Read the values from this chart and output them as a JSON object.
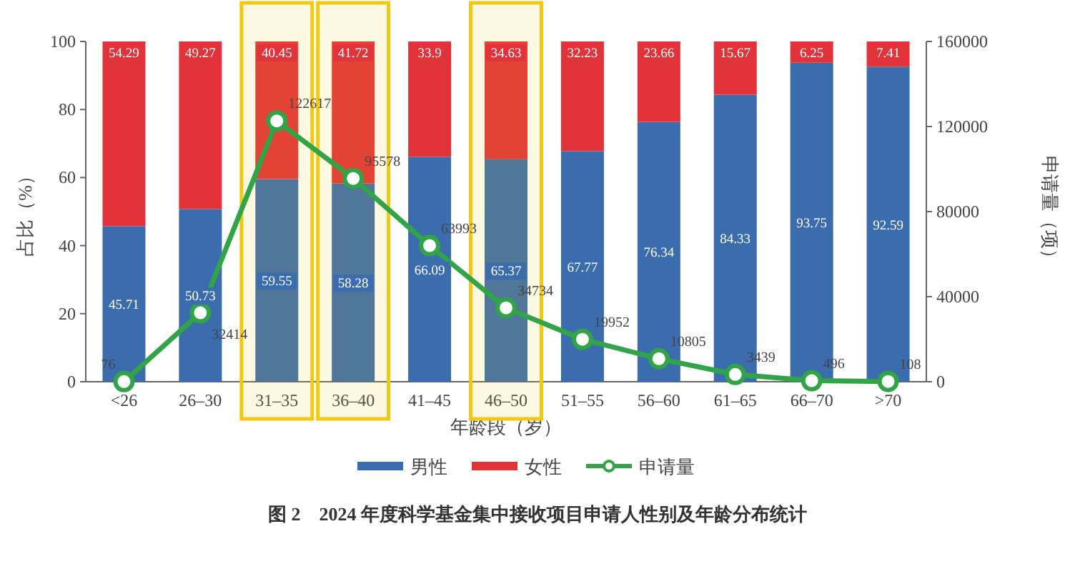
{
  "chart_data": {
    "type": "bar",
    "stacked": true,
    "xlabel": "年龄段（岁）",
    "ylabel": "占比（%）",
    "y2label": "申请量（项）",
    "categories": [
      "<26",
      "26–30",
      "31–35",
      "36–40",
      "41–45",
      "46–50",
      "51–55",
      "56–60",
      "61–65",
      "66–70",
      ">70"
    ],
    "series": [
      {
        "name": "男性",
        "color": "#3b6cae",
        "values": [
          45.71,
          50.73,
          59.55,
          58.28,
          66.09,
          65.37,
          67.77,
          76.34,
          84.33,
          93.75,
          92.59
        ]
      },
      {
        "name": "女性",
        "color": "#e2323a",
        "values": [
          54.29,
          49.27,
          40.45,
          41.72,
          33.9,
          34.63,
          32.23,
          23.66,
          15.67,
          6.25,
          7.41
        ]
      },
      {
        "name": "申请量",
        "type": "line",
        "axis": "y2",
        "color": "#31a447",
        "marker": "circle",
        "values": [
          76,
          32414,
          122617,
          95578,
          63993,
          34734,
          19952,
          10805,
          3439,
          496,
          108
        ]
      }
    ],
    "data_labels": true,
    "ylim": [
      0,
      100
    ],
    "yticks": [
      0,
      20,
      40,
      60,
      80,
      100
    ],
    "y2lim": [
      0,
      160000
    ],
    "y2ticks": [
      0,
      40000,
      80000,
      120000,
      160000
    ],
    "bands": [
      {
        "axis": "x",
        "from": "31–35",
        "to": "31–35",
        "color": "#f2c811"
      },
      {
        "axis": "x",
        "from": "36–40",
        "to": "36–40",
        "color": "#f2c811"
      },
      {
        "axis": "x",
        "from": "46–50",
        "to": "46–50",
        "color": "#f2c811"
      }
    ],
    "grid": false,
    "legend": "bottom",
    "annotations": [
      "图 2　2024 年度科学基金集中接收项目申请人性别及年龄分布统计"
    ]
  }
}
